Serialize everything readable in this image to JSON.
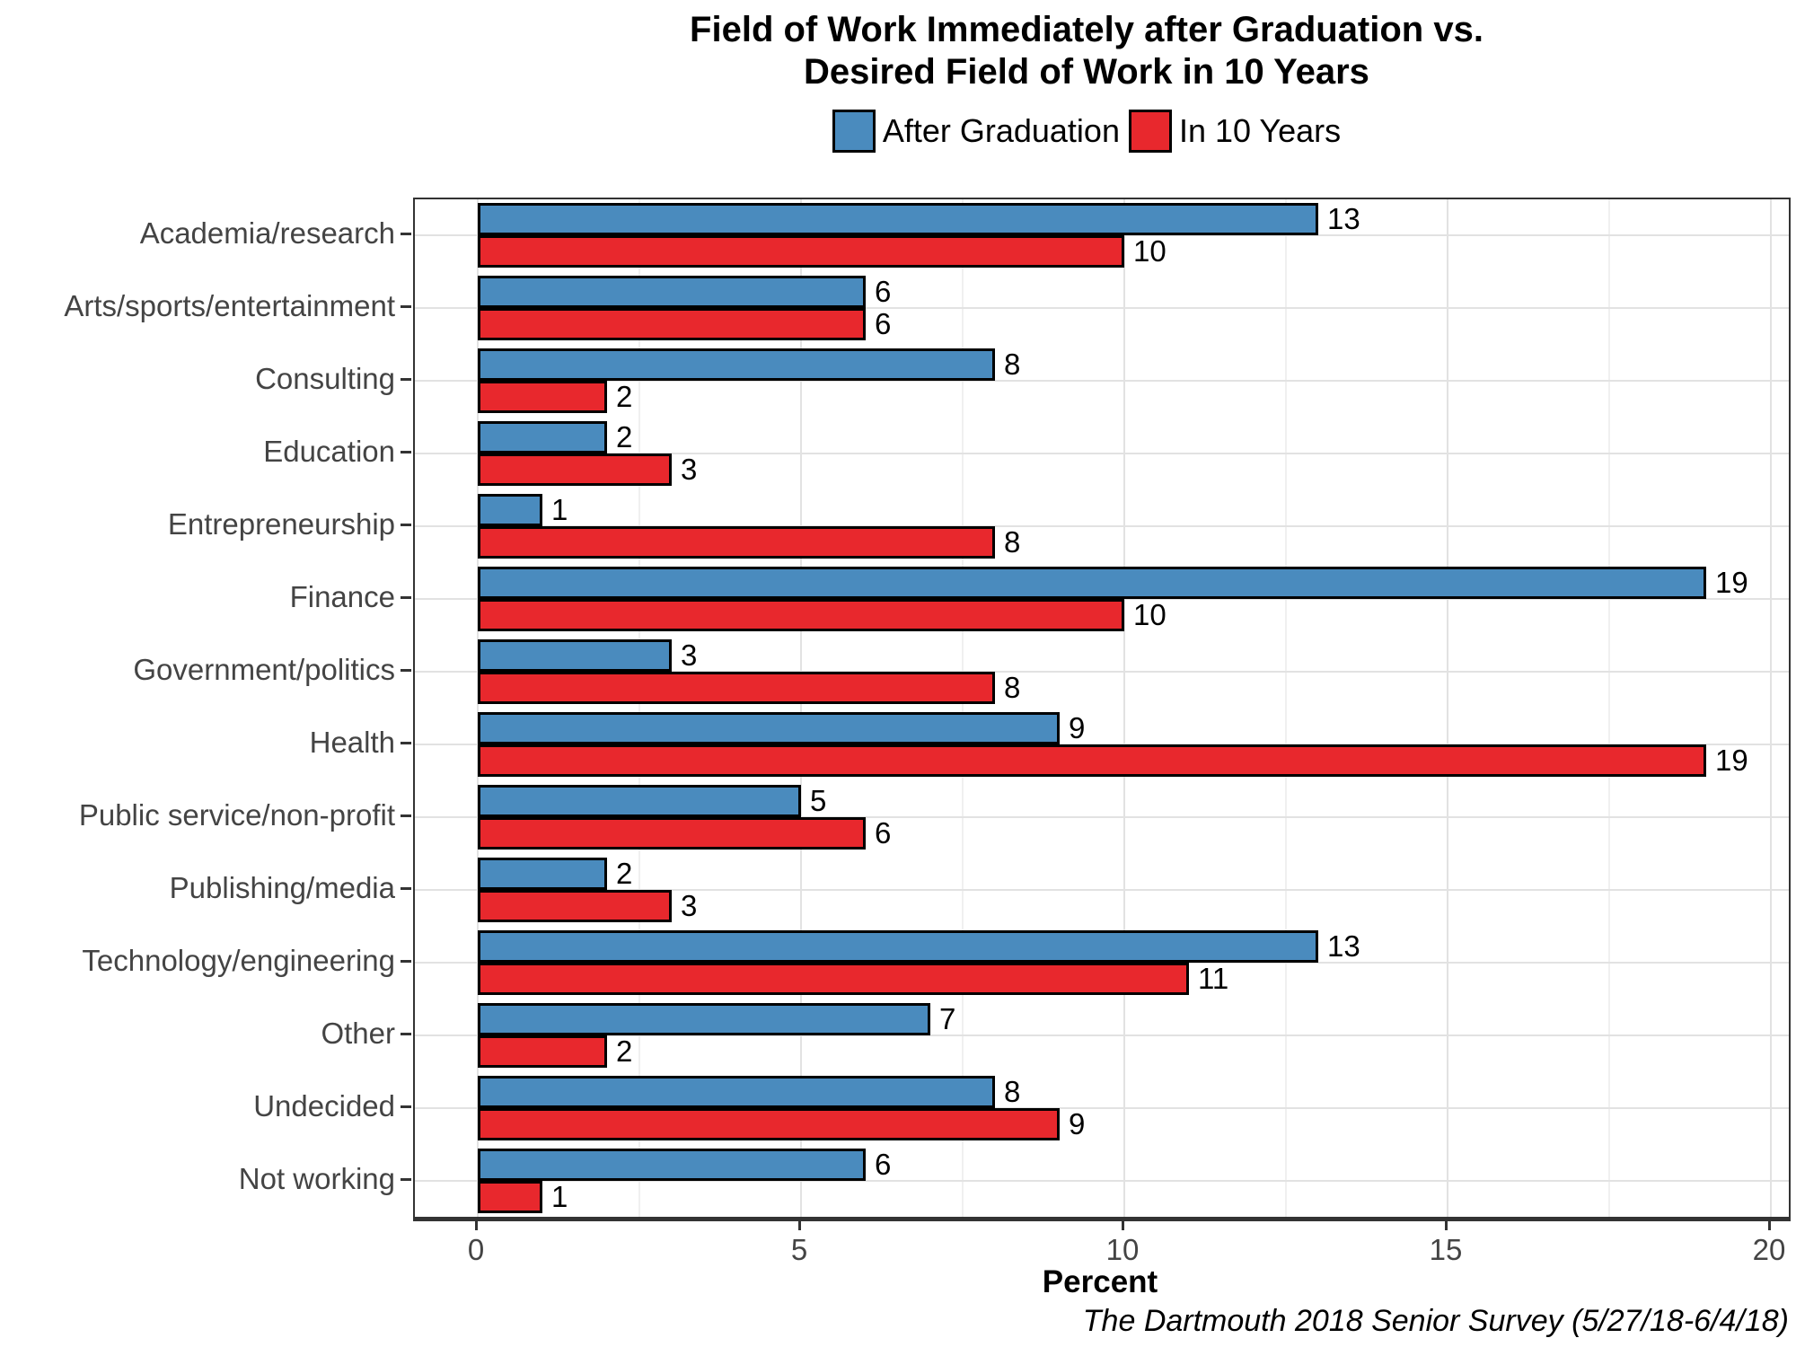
{
  "title": {
    "line1": "Field of Work Immediately after Graduation vs.",
    "line2": "Desired Field of Work in 10 Years"
  },
  "legend": [
    {
      "label": "After Graduation",
      "color": "#4A8BBE"
    },
    {
      "label": "In 10 Years",
      "color": "#E8282D"
    }
  ],
  "xlabel": "Percent",
  "caption": "The Dartmouth 2018 Senior Survey (5/27/18-6/4/18)",
  "colors": {
    "bar_blue": "#4A8BBE",
    "bar_red": "#E8282D",
    "bar_outline": "#000000",
    "axis_text": "#444444",
    "grid_major": "#E2E2E2",
    "grid_minor": "#F0F0F0",
    "panel_border": "#333333",
    "tick_mark": "#333333"
  },
  "chart_data": {
    "type": "bar",
    "orientation": "horizontal",
    "title": "Field of Work Immediately after Graduation vs. Desired Field of Work in 10 Years",
    "xlabel": "Percent",
    "ylabel": "",
    "categories": [
      "Academia/research",
      "Arts/sports/entertainment",
      "Consulting",
      "Education",
      "Entrepreneurship",
      "Finance",
      "Government/politics",
      "Health",
      "Public service/non-profit",
      "Publishing/media",
      "Technology/engineering",
      "Other",
      "Undecided",
      "Not working"
    ],
    "series": [
      {
        "name": "After Graduation",
        "color": "#4A8BBE",
        "values": [
          13,
          6,
          8,
          2,
          1,
          19,
          3,
          9,
          5,
          2,
          13,
          7,
          8,
          6
        ]
      },
      {
        "name": "In 10 Years",
        "color": "#E8282D",
        "values": [
          10,
          6,
          2,
          3,
          8,
          10,
          8,
          19,
          6,
          3,
          11,
          2,
          9,
          1
        ]
      }
    ],
    "xlim": [
      0,
      20
    ],
    "x_ticks": [
      0,
      5,
      10,
      15,
      20
    ],
    "x_minor_ticks": [
      2.5,
      7.5,
      12.5,
      17.5
    ],
    "grid": true,
    "bar_labels": true,
    "legend_position": "top",
    "caption": "The Dartmouth 2018 Senior Survey (5/27/18-6/4/18)"
  }
}
